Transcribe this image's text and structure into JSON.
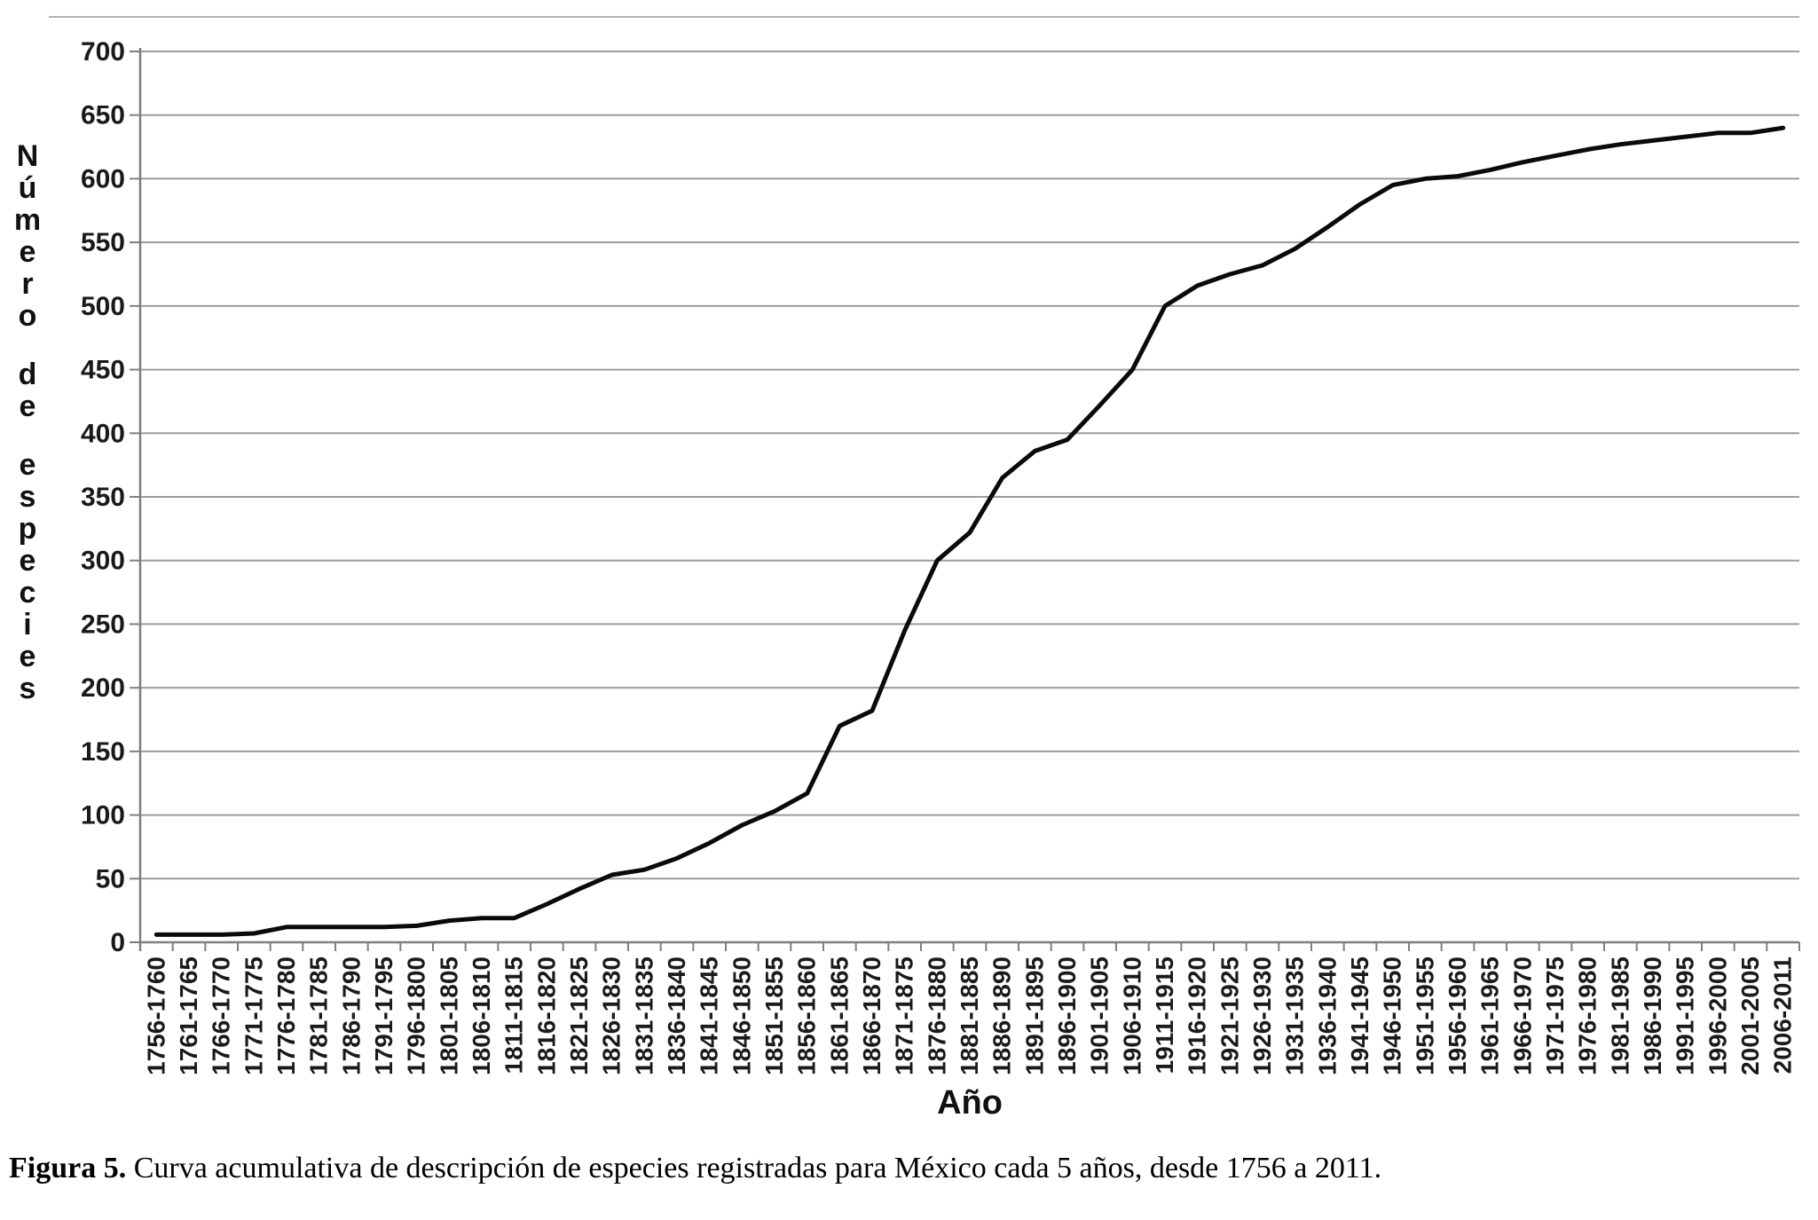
{
  "caption": {
    "label": "Figura 5.",
    "text": " Curva acumulativa de descripción de especies registradas para México cada 5 años, desde 1756 a 2011."
  },
  "chart_data": {
    "type": "line",
    "title": "",
    "xlabel": "Año",
    "ylabel": "Número de especies",
    "ylim": [
      0,
      700
    ],
    "ytick_step": 50,
    "grid": "horizontal",
    "legend": "none",
    "line_color": "#0a0a0a",
    "grid_color": "#9b9b9b",
    "axis_color": "#7f7f7f",
    "categories": [
      "1756-1760",
      "1761-1765",
      "1766-1770",
      "1771-1775",
      "1776-1780",
      "1781-1785",
      "1786-1790",
      "1791-1795",
      "1796-1800",
      "1801-1805",
      "1806-1810",
      "1811-1815",
      "1816-1820",
      "1821-1825",
      "1826-1830",
      "1831-1835",
      "1836-1840",
      "1841-1845",
      "1846-1850",
      "1851-1855",
      "1856-1860",
      "1861-1865",
      "1866-1870",
      "1871-1875",
      "1876-1880",
      "1881-1885",
      "1886-1890",
      "1891-1895",
      "1896-1900",
      "1901-1905",
      "1906-1910",
      "1911-1915",
      "1916-1920",
      "1921-1925",
      "1926-1930",
      "1931-1935",
      "1936-1940",
      "1941-1945",
      "1946-1950",
      "1951-1955",
      "1956-1960",
      "1961-1965",
      "1966-1970",
      "1971-1975",
      "1976-1980",
      "1981-1985",
      "1986-1990",
      "1991-1995",
      "1996-2000",
      "2001-2005",
      "2006-2011"
    ],
    "values": [
      6,
      6,
      6,
      7,
      12,
      12,
      12,
      12,
      13,
      17,
      19,
      19,
      30,
      42,
      53,
      57,
      66,
      78,
      92,
      103,
      117,
      170,
      182,
      245,
      300,
      322,
      365,
      386,
      395,
      422,
      450,
      500,
      516,
      525,
      532,
      545,
      562,
      580,
      595,
      600,
      602,
      607,
      613,
      618,
      623,
      627,
      630,
      633,
      636,
      636,
      640
    ]
  }
}
